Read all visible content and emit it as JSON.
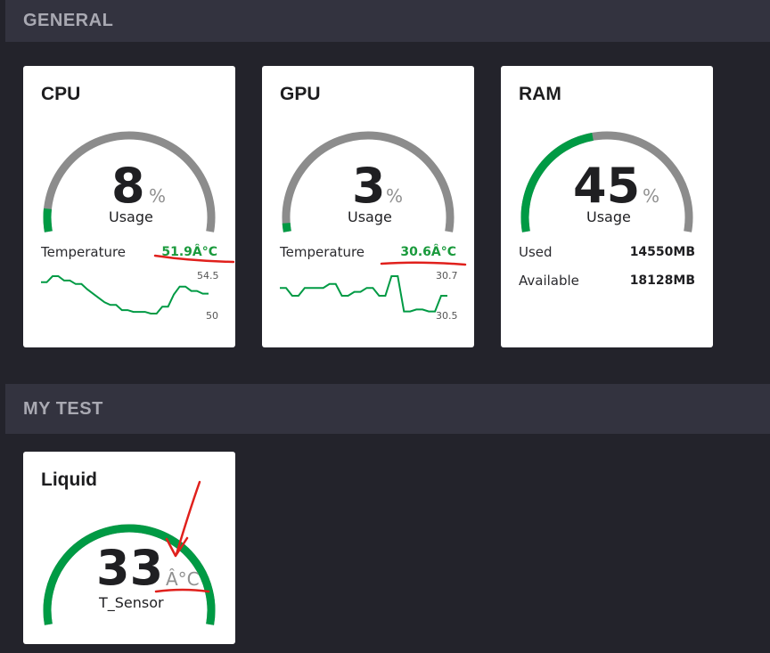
{
  "sections": {
    "general": "GENERAL",
    "my_test": "MY TEST"
  },
  "cpu": {
    "title": "CPU",
    "value": "8",
    "unit": "%",
    "label": "Usage",
    "gauge_percent": 8,
    "temp_label": "Temperature",
    "temp_value": "51.9Â°C",
    "spark_max": "54.5",
    "spark_min": "50",
    "spark_points": [
      53.8,
      53.8,
      54.5,
      54.5,
      54.0,
      54.0,
      53.6,
      53.6,
      53.0,
      52.5,
      52.0,
      51.5,
      51.2,
      51.2,
      50.6,
      50.6,
      50.4,
      50.4,
      50.4,
      50.2,
      50.2,
      51.0,
      51.0,
      52.4,
      53.3,
      53.3,
      52.8,
      52.8,
      52.5,
      52.5
    ]
  },
  "gpu": {
    "title": "GPU",
    "value": "3",
    "unit": "%",
    "label": "Usage",
    "gauge_percent": 3,
    "temp_label": "Temperature",
    "temp_value": "30.6Â°C",
    "spark_max": "30.7",
    "spark_min": "30.5",
    "spark_points": [
      30.64,
      30.64,
      30.6,
      30.6,
      30.64,
      30.64,
      30.64,
      30.64,
      30.66,
      30.66,
      30.6,
      30.6,
      30.62,
      30.62,
      30.64,
      30.64,
      30.6,
      30.6,
      30.7,
      30.7,
      30.52,
      30.52,
      30.53,
      30.53,
      30.52,
      30.52,
      30.6,
      30.6
    ]
  },
  "ram": {
    "title": "RAM",
    "value": "45",
    "unit": "%",
    "label": "Usage",
    "gauge_percent": 45,
    "used_label": "Used",
    "used_value": "14550MB",
    "available_label": "Available",
    "available_value": "18128MB"
  },
  "liquid": {
    "title": "Liquid",
    "value": "33",
    "unit": "Â°C",
    "label": "T_Sensor",
    "gauge_percent": 100
  },
  "colors": {
    "accent": "#009a44",
    "track": "#8c8c8c",
    "annotation": "#e0201c"
  }
}
